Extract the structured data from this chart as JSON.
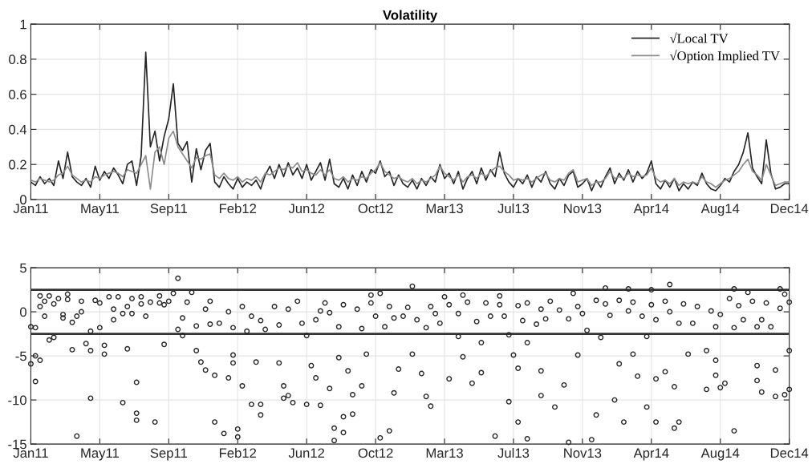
{
  "chart_data": [
    {
      "type": "line",
      "title": "Volatility",
      "legend": "top right",
      "grid": true,
      "marker": "none",
      "line_style": "solid",
      "categories": [
        "Jan11",
        null,
        null,
        null,
        null,
        null,
        null,
        null,
        null,
        null,
        null,
        null,
        null,
        null,
        null,
        "May11",
        null,
        null,
        null,
        null,
        null,
        null,
        null,
        null,
        null,
        null,
        null,
        null,
        null,
        null,
        "Sep11",
        null,
        null,
        null,
        null,
        null,
        null,
        null,
        null,
        null,
        null,
        null,
        null,
        null,
        null,
        "Feb12",
        null,
        null,
        null,
        null,
        null,
        null,
        null,
        null,
        null,
        null,
        null,
        null,
        null,
        null,
        "Jun12",
        null,
        null,
        null,
        null,
        null,
        null,
        null,
        null,
        null,
        null,
        null,
        null,
        null,
        null,
        "Oct12",
        null,
        null,
        null,
        null,
        null,
        null,
        null,
        null,
        null,
        null,
        null,
        null,
        null,
        null,
        "Mar13",
        null,
        null,
        null,
        null,
        null,
        null,
        null,
        null,
        null,
        null,
        null,
        null,
        null,
        null,
        "Jul13",
        null,
        null,
        null,
        null,
        null,
        null,
        null,
        null,
        null,
        null,
        null,
        null,
        null,
        null,
        "Nov13",
        null,
        null,
        null,
        null,
        null,
        null,
        null,
        null,
        null,
        null,
        null,
        null,
        null,
        null,
        "Apr14",
        null,
        null,
        null,
        null,
        null,
        null,
        null,
        null,
        null,
        null,
        null,
        null,
        null,
        null,
        "Aug14",
        null,
        null,
        null,
        null,
        null,
        null,
        null,
        null,
        null,
        null,
        null,
        null,
        null,
        null,
        "Dec14"
      ],
      "ylim": [
        0,
        1
      ],
      "yticks": [
        0,
        0.2,
        0.4,
        0.6,
        0.8,
        1
      ],
      "series": [
        {
          "name": "√Local TV",
          "color": "#262626",
          "values": [
            0.1,
            0.08,
            0.13,
            0.09,
            0.12,
            0.08,
            0.22,
            0.12,
            0.27,
            0.13,
            0.1,
            0.08,
            0.12,
            0.07,
            0.19,
            0.11,
            0.16,
            0.12,
            0.18,
            0.14,
            0.09,
            0.2,
            0.22,
            0.08,
            0.25,
            0.84,
            0.3,
            0.39,
            0.22,
            0.36,
            0.46,
            0.66,
            0.32,
            0.28,
            0.33,
            0.1,
            0.29,
            0.17,
            0.28,
            0.32,
            0.1,
            0.07,
            0.13,
            0.09,
            0.06,
            0.12,
            0.07,
            0.1,
            0.08,
            0.11,
            0.06,
            0.14,
            0.19,
            0.12,
            0.2,
            0.13,
            0.21,
            0.14,
            0.18,
            0.12,
            0.2,
            0.11,
            0.16,
            0.21,
            0.11,
            0.23,
            0.09,
            0.07,
            0.12,
            0.06,
            0.14,
            0.08,
            0.16,
            0.1,
            0.17,
            0.15,
            0.22,
            0.13,
            0.16,
            0.08,
            0.14,
            0.09,
            0.07,
            0.11,
            0.06,
            0.12,
            0.08,
            0.13,
            0.1,
            0.2,
            0.12,
            0.15,
            0.09,
            0.16,
            0.06,
            0.12,
            0.16,
            0.09,
            0.18,
            0.11,
            0.17,
            0.13,
            0.27,
            0.15,
            0.1,
            0.07,
            0.12,
            0.09,
            0.14,
            0.07,
            0.13,
            0.1,
            0.16,
            0.09,
            0.06,
            0.12,
            0.08,
            0.14,
            0.16,
            0.07,
            0.09,
            0.12,
            0.05,
            0.11,
            0.07,
            0.13,
            0.18,
            0.09,
            0.15,
            0.11,
            0.17,
            0.1,
            0.16,
            0.12,
            0.15,
            0.22,
            0.09,
            0.06,
            0.11,
            0.07,
            0.12,
            0.05,
            0.09,
            0.06,
            0.1,
            0.08,
            0.15,
            0.09,
            0.06,
            0.05,
            0.08,
            0.12,
            0.1,
            0.16,
            0.2,
            0.27,
            0.38,
            0.18,
            0.13,
            0.09,
            0.34,
            0.15,
            0.06,
            0.07,
            0.09,
            0.09
          ]
        },
        {
          "name": "√Option Implied TV",
          "color": "#8c8c8c",
          "values": [
            0.11,
            0.1,
            0.12,
            0.11,
            0.1,
            0.11,
            0.14,
            0.15,
            0.19,
            0.14,
            0.12,
            0.1,
            0.11,
            0.1,
            0.13,
            0.12,
            0.14,
            0.15,
            0.16,
            0.15,
            0.13,
            0.17,
            0.16,
            0.15,
            0.2,
            0.25,
            0.06,
            0.27,
            0.3,
            0.2,
            0.35,
            0.39,
            0.3,
            0.26,
            0.22,
            0.18,
            0.24,
            0.23,
            0.25,
            0.26,
            0.14,
            0.12,
            0.15,
            0.12,
            0.11,
            0.13,
            0.1,
            0.12,
            0.11,
            0.13,
            0.1,
            0.15,
            0.14,
            0.16,
            0.18,
            0.17,
            0.19,
            0.18,
            0.21,
            0.16,
            0.17,
            0.15,
            0.14,
            0.17,
            0.14,
            0.17,
            0.12,
            0.11,
            0.13,
            0.1,
            0.12,
            0.11,
            0.13,
            0.12,
            0.15,
            0.17,
            0.21,
            0.16,
            0.14,
            0.12,
            0.13,
            0.11,
            0.1,
            0.12,
            0.09,
            0.11,
            0.1,
            0.12,
            0.14,
            0.19,
            0.15,
            0.13,
            0.11,
            0.14,
            0.1,
            0.13,
            0.14,
            0.12,
            0.15,
            0.13,
            0.16,
            0.18,
            0.19,
            0.16,
            0.14,
            0.11,
            0.12,
            0.11,
            0.12,
            0.1,
            0.12,
            0.14,
            0.15,
            0.11,
            0.1,
            0.12,
            0.11,
            0.15,
            0.17,
            0.1,
            0.11,
            0.12,
            0.08,
            0.1,
            0.1,
            0.12,
            0.16,
            0.12,
            0.13,
            0.12,
            0.15,
            0.13,
            0.14,
            0.13,
            0.14,
            0.18,
            0.12,
            0.1,
            0.11,
            0.09,
            0.12,
            0.08,
            0.1,
            0.09,
            0.1,
            0.09,
            0.13,
            0.1,
            0.09,
            0.07,
            0.09,
            0.11,
            0.12,
            0.14,
            0.16,
            0.2,
            0.23,
            0.16,
            0.14,
            0.11,
            0.2,
            0.14,
            0.08,
            0.09,
            0.1,
            0.1
          ]
        }
      ]
    },
    {
      "type": "scatter",
      "grid": true,
      "marker": "circle",
      "categories": [
        "Jan11",
        null,
        null,
        null,
        null,
        null,
        null,
        null,
        null,
        null,
        null,
        null,
        null,
        null,
        null,
        "May11",
        null,
        null,
        null,
        null,
        null,
        null,
        null,
        null,
        null,
        null,
        null,
        null,
        null,
        null,
        "Sep11",
        null,
        null,
        null,
        null,
        null,
        null,
        null,
        null,
        null,
        null,
        null,
        null,
        null,
        null,
        "Feb12",
        null,
        null,
        null,
        null,
        null,
        null,
        null,
        null,
        null,
        null,
        null,
        null,
        null,
        null,
        "Jun12",
        null,
        null,
        null,
        null,
        null,
        null,
        null,
        null,
        null,
        null,
        null,
        null,
        null,
        null,
        "Oct12",
        null,
        null,
        null,
        null,
        null,
        null,
        null,
        null,
        null,
        null,
        null,
        null,
        null,
        null,
        "Mar13",
        null,
        null,
        null,
        null,
        null,
        null,
        null,
        null,
        null,
        null,
        null,
        null,
        null,
        null,
        "Jul13",
        null,
        null,
        null,
        null,
        null,
        null,
        null,
        null,
        null,
        null,
        null,
        null,
        null,
        null,
        "Nov13",
        null,
        null,
        null,
        null,
        null,
        null,
        null,
        null,
        null,
        null,
        null,
        null,
        null,
        null,
        "Apr14",
        null,
        null,
        null,
        null,
        null,
        null,
        null,
        null,
        null,
        null,
        null,
        null,
        null,
        null,
        "Aug14",
        null,
        null,
        null,
        null,
        null,
        null,
        null,
        null,
        null,
        null,
        null,
        null,
        null,
        null,
        "Dec14"
      ],
      "ylim": [
        -15,
        5
      ],
      "yticks": [
        -15,
        -10,
        -5,
        0,
        5
      ],
      "ref_lines": [
        {
          "axis": "y",
          "value": 2.5,
          "color": "#333333"
        },
        {
          "axis": "y",
          "value": -2.5,
          "color": "#333333"
        }
      ],
      "series": [
        {
          "color": "#262626",
          "values": [
            -5.9,
            -5.0,
            -5.5,
            1.2,
            1.8,
            -2.9,
            1.5,
            -0.7,
            2.0,
            -4.3,
            -14.1,
            1.2,
            -3.6,
            -9.8,
            1.3,
            1.0,
            -3.8,
            1.7,
            0.3,
            1.7,
            -10.3,
            -4.2,
            1.5,
            -8.0,
            1.7,
            -0.5,
            1.1,
            -12.5,
            1.8,
            -3.7,
            1.2,
            2.1,
            3.8,
            -2.7,
            1.1,
            2.2,
            -4.4,
            -5.7,
            -6.6,
            1.2,
            -12.5,
            -1.3,
            -13.8,
            -7.5,
            -4.9,
            -14.2,
            -8.4,
            -2.2,
            -10.5,
            -5.7,
            -11.7,
            -2.0,
            null,
            0.6,
            -5.8,
            -8.4,
            -9.5,
            -10.3,
            1.2,
            -1.3,
            -10.5,
            -6.1,
            -7.5,
            -10.6,
            1.0,
            -8.7,
            -14.6,
            -5.2,
            -11.9,
            -6.7,
            -9.4,
            0.3,
            -8.4,
            -4.8,
            1.9,
            -0.5,
            -14.3,
            -1.7,
            -13.5,
            -9.2,
            -6.5,
            -0.5,
            0.5,
            2.9,
            -0.9,
            -7.0,
            -9.6,
            -10.7,
            -0.2,
            -1.3,
            1.7,
            -7.6,
            null,
            -0.2,
            -5.1,
            1.1,
            -8.1,
            -1.1,
            -6.9,
            1.0,
            -0.5,
            -14.1,
            1.8,
            -0.5,
            -10.2,
            -4.9,
            -12.5,
            -1.0,
            -14.4,
            null,
            -1.4,
            -6.7,
            -0.8,
            1.2,
            -10.8,
            0.2,
            -8.3,
            -14.8,
            2.1,
            -4.9,
            -0.2,
            -2.1,
            -14.5,
            -11.7,
            -2.9,
            2.7,
            -0.4,
            -10.0,
            -5.9,
            -12.5,
            2.6,
            -4.8,
            -7.3,
            -0.5,
            -10.8,
            2.5,
            -12.5,
            null,
            -6.8,
            3.1,
            -8.5,
            -12.5,
            0.9,
            -4.8,
            -1.3,
            0.6,
            null,
            -8.8,
            0.1,
            -5.5,
            -8.6,
            -8.1,
            1.5,
            -13.5,
            0.7,
            -0.9,
            2.2,
            1.2,
            -7.8,
            -9.1,
            1.0,
            -1.7,
            -9.6,
            2.6,
            -9.4,
            -8.8
          ]
        },
        {
          "color": "#262626",
          "values": [
            -1.7,
            -7.9,
            1.8,
            -0.5,
            -3.2,
            0.9,
            null,
            -0.3,
            1.4,
            -1.2,
            -0.5,
            0.0,
            null,
            -4.4,
            null,
            -1.8,
            -4.8,
            null,
            -0.9,
            null,
            -0.2,
            0.6,
            -0.2,
            -11.5,
            0.9,
            null,
            null,
            null,
            1.0,
            0.8,
            null,
            null,
            -2.0,
            -0.7,
            null,
            null,
            -1.6,
            null,
            0.3,
            -1.4,
            -7.2,
            null,
            null,
            0.0,
            -5.8,
            -13.3,
            0.6,
            null,
            -0.5,
            null,
            -10.5,
            null,
            null,
            null,
            -1.5,
            -9.8,
            0.3,
            null,
            null,
            null,
            -2.7,
            null,
            -0.9,
            0.1,
            null,
            -0.1,
            -13.2,
            -1.7,
            -13.7,
            null,
            -11.6,
            null,
            -1.9,
            null,
            1.0,
            null,
            2.1,
            null,
            0.6,
            -0.7,
            null,
            null,
            null,
            -4.8,
            null,
            null,
            -1.8,
            0.6,
            null,
            null,
            null,
            0.8,
            null,
            -2.8,
            1.9,
            null,
            null,
            null,
            -3.5,
            null,
            null,
            null,
            0.8,
            null,
            -2.6,
            null,
            -6.4,
            null,
            -3.5,
            null,
            null,
            -9.5,
            null,
            null,
            null,
            null,
            null,
            -0.8,
            null,
            0.6,
            null,
            null,
            null,
            1.3,
            null,
            0.9,
            null,
            null,
            1.3,
            null,
            0.1,
            1.1,
            null,
            null,
            -2.8,
            0.8,
            -7.6,
            null,
            1.2,
            0.0,
            -13.2,
            -1.3,
            null,
            null,
            null,
            null,
            null,
            -4.4,
            null,
            -7.2,
            -0.3,
            null,
            null,
            2.6,
            null,
            null,
            null,
            null,
            -6.1,
            -0.9,
            null,
            null,
            -6.6,
            0.4,
            2.0,
            -4.4
          ]
        },
        {
          "color": "#262626",
          "values": [
            null,
            -1.8,
            0.6,
            null,
            null,
            null,
            null,
            null,
            null,
            null,
            null,
            null,
            null,
            -2.2,
            null,
            null,
            null,
            null,
            null,
            null,
            null,
            null,
            null,
            -12.3,
            null,
            null,
            null,
            null,
            null,
            null,
            null,
            null,
            null,
            null,
            null,
            null,
            null,
            null,
            null,
            null,
            null,
            null,
            null,
            null,
            -1.8,
            null,
            null,
            null,
            null,
            null,
            -1.0,
            null,
            null,
            null,
            null,
            null,
            null,
            null,
            null,
            null,
            null,
            null,
            null,
            null,
            null,
            null,
            null,
            null,
            0.8,
            null,
            null,
            null,
            null,
            null,
            null,
            null,
            null,
            null,
            null,
            null,
            null,
            null,
            null,
            null,
            null,
            null,
            null,
            null,
            null,
            null,
            null,
            null,
            null,
            null,
            null,
            null,
            null,
            null,
            null,
            null,
            null,
            null,
            null,
            null,
            null,
            null,
            0.7,
            null,
            1.0,
            null,
            null,
            0.3,
            null,
            null,
            null,
            null,
            null,
            null,
            null,
            null,
            null,
            null,
            null,
            null,
            null,
            null,
            null,
            null,
            null,
            null,
            null,
            null,
            null,
            null,
            null,
            null,
            -0.9,
            null,
            null,
            null,
            null,
            null,
            null,
            null,
            null,
            null,
            null,
            null,
            null,
            -1.7,
            null,
            null,
            null,
            -1.8,
            null,
            null,
            null,
            null,
            -1.7,
            null,
            null,
            null,
            null,
            null,
            null,
            1.1
          ]
        }
      ]
    }
  ]
}
